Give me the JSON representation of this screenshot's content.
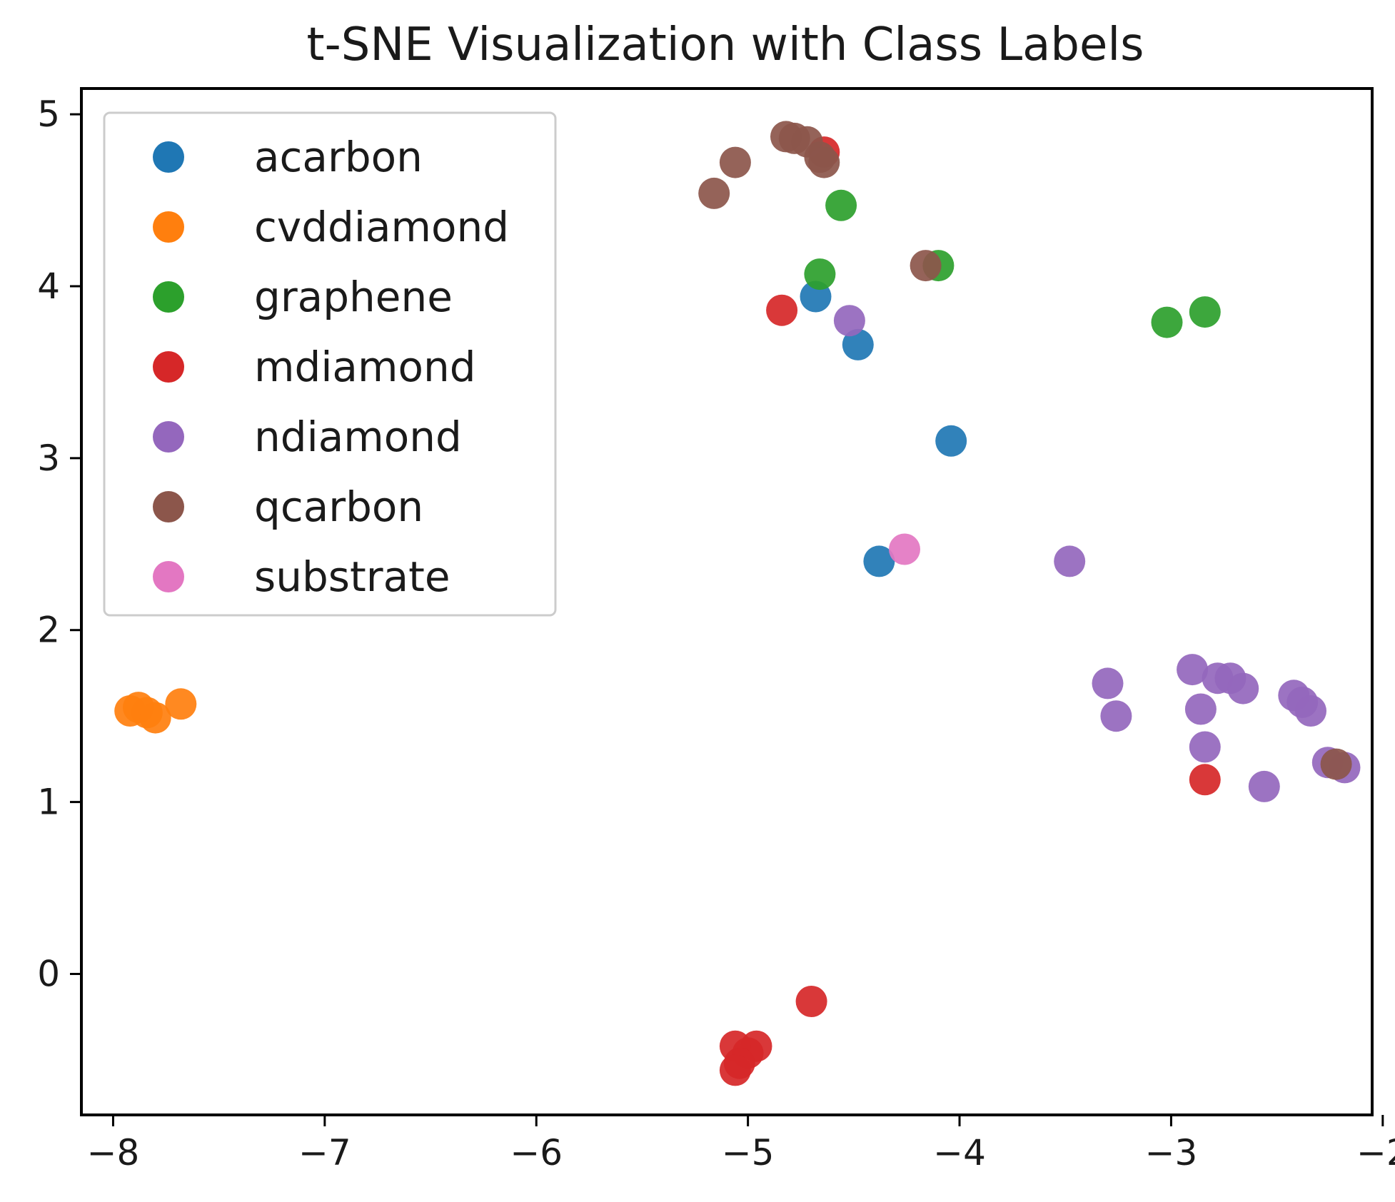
{
  "chart_data": {
    "type": "scatter",
    "title": "t-SNE Visualization with Class Labels",
    "xlabel": "",
    "ylabel": "",
    "xlim": [
      -8.15,
      -2.05
    ],
    "ylim": [
      -0.82,
      5.15
    ],
    "x_ticks": [
      -8,
      -7,
      -6,
      -5,
      -4,
      -3,
      -2
    ],
    "x_tick_labels": [
      "−8",
      "−7",
      "−6",
      "−5",
      "−4",
      "−3",
      "−2"
    ],
    "y_ticks": [
      0,
      1,
      2,
      3,
      4,
      5
    ],
    "y_tick_labels": [
      "0",
      "1",
      "2",
      "3",
      "4",
      "5"
    ],
    "grid": false,
    "legend_position": "upper-left",
    "series": [
      {
        "name": "acarbon",
        "color": "#1f77b4",
        "points": [
          [
            -4.68,
            3.94
          ],
          [
            -4.48,
            3.66
          ],
          [
            -4.04,
            3.1
          ],
          [
            -4.38,
            2.4
          ]
        ]
      },
      {
        "name": "cvddiamond",
        "color": "#ff7f0e",
        "points": [
          [
            -7.92,
            1.53
          ],
          [
            -7.88,
            1.55
          ],
          [
            -7.84,
            1.52
          ],
          [
            -7.8,
            1.49
          ],
          [
            -7.68,
            1.57
          ]
        ]
      },
      {
        "name": "graphene",
        "color": "#2ca02c",
        "points": [
          [
            -4.56,
            4.47
          ],
          [
            -4.66,
            4.07
          ],
          [
            -4.1,
            4.12
          ],
          [
            -3.02,
            3.79
          ],
          [
            -2.84,
            3.85
          ]
        ]
      },
      {
        "name": "mdiamond",
        "color": "#d62728",
        "points": [
          [
            -4.64,
            4.78
          ],
          [
            -4.84,
            3.86
          ],
          [
            -2.84,
            1.13
          ],
          [
            -4.7,
            -0.16
          ],
          [
            -5.06,
            -0.42
          ],
          [
            -5.0,
            -0.46
          ],
          [
            -4.96,
            -0.42
          ],
          [
            -5.04,
            -0.52
          ],
          [
            -5.06,
            -0.56
          ]
        ]
      },
      {
        "name": "ndiamond",
        "color": "#9467bd",
        "points": [
          [
            -4.52,
            3.8
          ],
          [
            -3.48,
            2.4
          ],
          [
            -3.3,
            1.69
          ],
          [
            -3.26,
            1.5
          ],
          [
            -2.9,
            1.77
          ],
          [
            -2.78,
            1.72
          ],
          [
            -2.72,
            1.72
          ],
          [
            -2.66,
            1.66
          ],
          [
            -2.86,
            1.54
          ],
          [
            -2.84,
            1.32
          ],
          [
            -2.42,
            1.62
          ],
          [
            -2.38,
            1.58
          ],
          [
            -2.34,
            1.53
          ],
          [
            -2.56,
            1.09
          ],
          [
            -2.26,
            1.23
          ],
          [
            -2.18,
            1.2
          ]
        ]
      },
      {
        "name": "qcarbon",
        "color": "#8c564b",
        "points": [
          [
            -4.82,
            4.87
          ],
          [
            -4.78,
            4.86
          ],
          [
            -4.72,
            4.84
          ],
          [
            -4.66,
            4.75
          ],
          [
            -4.64,
            4.72
          ],
          [
            -5.06,
            4.72
          ],
          [
            -5.16,
            4.54
          ],
          [
            -4.16,
            4.12
          ],
          [
            -2.22,
            1.22
          ]
        ]
      },
      {
        "name": "substrate",
        "color": "#e377c2",
        "points": [
          [
            -4.26,
            2.47
          ]
        ]
      }
    ]
  }
}
